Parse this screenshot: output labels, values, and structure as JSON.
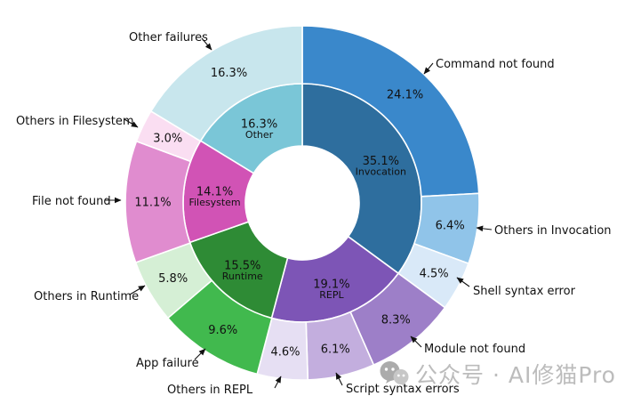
{
  "chart_data": {
    "type": "pie",
    "variant": "nested-donut-sunburst",
    "direction": "clockwise",
    "start_angle_deg": 90,
    "grid": false,
    "legend": "none (external arrow annotations)",
    "rings": [
      {
        "name": "inner-categories",
        "segments": [
          {
            "label": "Invocation",
            "value": 35.1,
            "color": "#2e6e9e"
          },
          {
            "label": "REPL",
            "value": 19.1,
            "color": "#7d55b6"
          },
          {
            "label": "Runtime",
            "value": 15.5,
            "color": "#2e8b35"
          },
          {
            "label": "Filesystem",
            "value": 14.1,
            "color": "#d153b5"
          },
          {
            "label": "Other",
            "value": 16.3,
            "color": "#7ac6d7"
          }
        ]
      },
      {
        "name": "outer-failure-types",
        "segments": [
          {
            "label": "Command not found",
            "parent": "Invocation",
            "value": 24.1,
            "color": "#3a88cb"
          },
          {
            "label": "Others in Invocation",
            "parent": "Invocation",
            "value": 6.4,
            "color": "#90c4e9"
          },
          {
            "label": "Shell syntax error",
            "parent": "Invocation",
            "value": 4.5,
            "color": "#d9e9f8"
          },
          {
            "label": "Module not found",
            "parent": "REPL",
            "value": 8.3,
            "color": "#9d7fc8"
          },
          {
            "label": "Script syntax errors",
            "parent": "REPL",
            "value": 6.1,
            "color": "#c3aede"
          },
          {
            "label": "Others in REPL",
            "parent": "REPL",
            "value": 4.6,
            "color": "#e6dff3"
          },
          {
            "label": "App failure",
            "parent": "Runtime",
            "value": 9.6,
            "color": "#41b94e"
          },
          {
            "label": "Others in Runtime",
            "parent": "Runtime",
            "value": 5.8,
            "color": "#d5efd5"
          },
          {
            "label": "File not found",
            "parent": "Filesystem",
            "value": 11.1,
            "color": "#e08ccf"
          },
          {
            "label": "Others in Filesystem",
            "parent": "Filesystem",
            "value": 3.0,
            "color": "#fadef2"
          },
          {
            "label": "Other failures",
            "parent": "Other",
            "value": 16.3,
            "color": "#c8e6ed"
          }
        ]
      }
    ]
  },
  "watermark": {
    "icon": "wechat-icon",
    "text": "公众号 · AI修猫Prompt"
  }
}
